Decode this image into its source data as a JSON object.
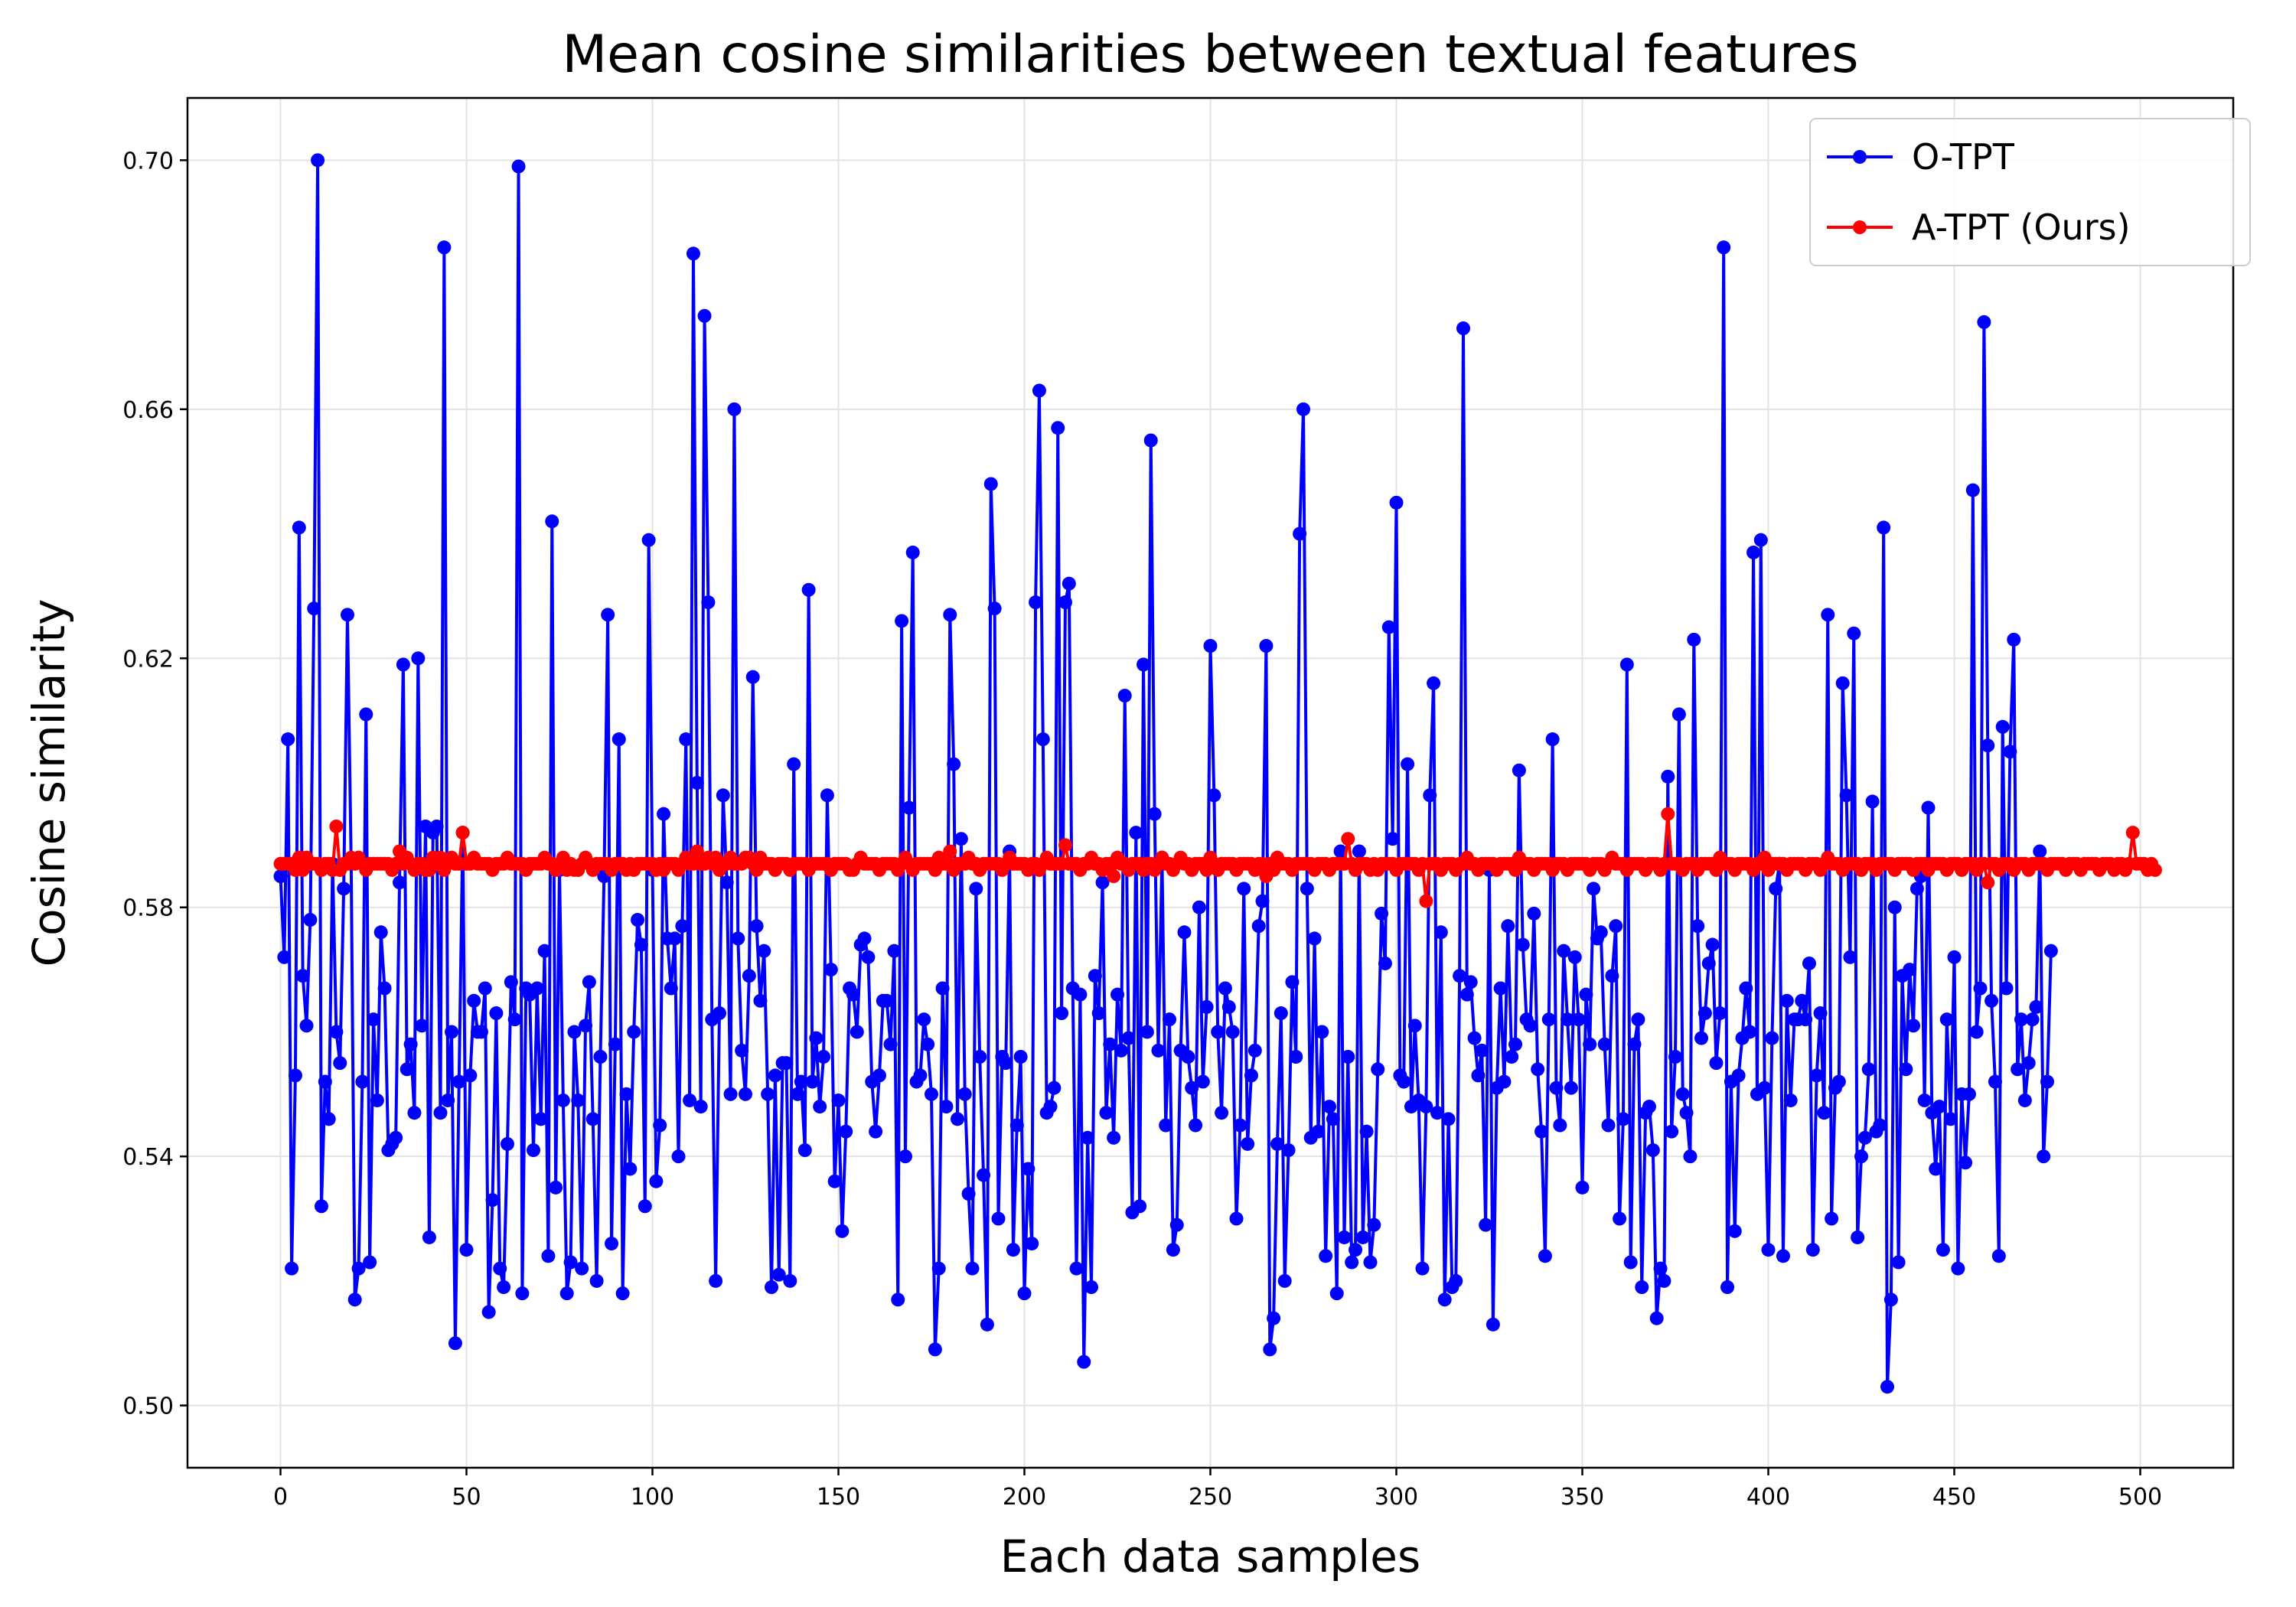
{
  "chart_data": {
    "type": "line",
    "title": "Mean cosine similarities between textual features",
    "xlabel": "Each data samples",
    "ylabel": "Cosine similarity",
    "xlim": [
      -25,
      525
    ],
    "ylim": [
      0.49,
      0.71
    ],
    "xticks": [
      0,
      50,
      100,
      150,
      200,
      250,
      300,
      350,
      400,
      450,
      500
    ],
    "yticks": [
      0.5,
      0.54,
      0.58,
      0.62,
      0.66,
      0.7
    ],
    "xtick_labels": [
      "0",
      "50",
      "100",
      "150",
      "200",
      "250",
      "300",
      "350",
      "400",
      "450",
      "500"
    ],
    "ytick_labels": [
      "0.50",
      "0.54",
      "0.58",
      "0.62",
      "0.66",
      "0.70"
    ],
    "grid": true,
    "legend_position": "top-right",
    "series": [
      {
        "name": "O-TPT",
        "color": "#0000ff",
        "marker": "circle",
        "values": [
          0.585,
          0.572,
          0.607,
          0.522,
          0.553,
          0.641,
          0.569,
          0.561,
          0.578,
          0.628,
          0.7,
          0.532,
          0.552,
          0.546,
          0.587,
          0.56,
          0.555,
          0.583,
          0.627,
          0.587,
          0.517,
          0.522,
          0.552,
          0.611,
          0.523,
          0.562,
          0.549,
          0.576,
          0.567,
          0.541,
          0.542,
          0.543,
          0.584,
          0.619,
          0.554,
          0.558,
          0.547,
          0.62,
          0.561,
          0.593,
          0.527,
          0.592,
          0.593,
          0.547,
          0.686,
          0.549,
          0.56,
          0.51,
          0.552,
          0.592,
          0.525,
          0.553,
          0.565,
          0.56,
          0.56,
          0.567,
          0.515,
          0.533,
          0.563,
          0.522,
          0.519,
          0.542,
          0.568,
          0.562,
          0.699,
          0.518,
          0.567,
          0.566,
          0.541,
          0.567,
          0.546,
          0.573,
          0.524,
          0.642,
          0.535,
          0.586,
          0.549,
          0.518,
          0.523,
          0.56,
          0.549,
          0.522,
          0.561,
          0.568,
          0.546,
          0.52,
          0.556,
          0.585,
          0.627,
          0.526,
          0.558,
          0.607,
          0.518,
          0.55,
          0.538,
          0.56,
          0.578,
          0.574,
          0.532,
          0.639,
          0.586,
          0.536,
          0.545,
          0.595,
          0.575,
          0.567,
          0.575,
          0.54,
          0.577,
          0.607,
          0.549,
          0.685,
          0.6,
          0.548,
          0.675,
          0.629,
          0.562,
          0.52,
          0.563,
          0.598,
          0.584,
          0.55,
          0.66,
          0.575,
          0.557,
          0.55,
          0.569,
          0.617,
          0.577,
          0.565,
          0.573,
          0.55,
          0.519,
          0.553,
          0.521,
          0.555,
          0.555,
          0.52,
          0.603,
          0.55,
          0.552,
          0.541,
          0.631,
          0.552,
          0.559,
          0.548,
          0.556,
          0.598,
          0.57,
          0.536,
          0.549,
          0.528,
          0.544,
          0.567,
          0.566,
          0.56,
          0.574,
          0.575,
          0.572,
          0.552,
          0.544,
          0.553,
          0.565,
          0.565,
          0.558,
          0.573,
          0.517,
          0.626,
          0.54,
          0.596,
          0.637,
          0.552,
          0.553,
          0.562,
          0.558,
          0.55,
          0.509,
          0.522,
          0.567,
          0.548,
          0.627,
          0.603,
          0.546,
          0.591,
          0.55,
          0.534,
          0.522,
          0.583,
          0.556,
          0.537,
          0.513,
          0.648,
          0.628,
          0.53,
          0.556,
          0.555,
          0.589,
          0.525,
          0.545,
          0.556,
          0.518,
          0.538,
          0.526,
          0.629,
          0.663,
          0.607,
          0.547,
          0.548,
          0.551,
          0.657,
          0.563,
          0.629,
          0.632,
          0.567,
          0.522,
          0.566,
          0.507,
          0.543,
          0.519,
          0.569,
          0.563,
          0.584,
          0.547,
          0.558,
          0.543,
          0.566,
          0.557,
          0.614,
          0.559,
          0.531,
          0.592,
          0.532,
          0.619,
          0.56,
          0.655,
          0.595,
          0.557,
          0.588,
          0.545,
          0.562,
          0.525,
          0.529,
          0.557,
          0.576,
          0.556,
          0.551,
          0.545,
          0.58,
          0.552,
          0.564,
          0.622,
          0.598,
          0.56,
          0.547,
          0.567,
          0.564,
          0.56,
          0.53,
          0.545,
          0.583,
          0.542,
          0.553,
          0.557,
          0.577,
          0.581,
          0.622,
          0.509,
          0.514,
          0.542,
          0.563,
          0.52,
          0.541,
          0.568,
          0.556,
          0.64,
          0.66,
          0.583,
          0.543,
          0.575,
          0.544,
          0.56,
          0.524,
          0.548,
          0.546,
          0.518,
          0.589,
          0.527,
          0.556,
          0.523,
          0.525,
          0.589,
          0.527,
          0.544,
          0.523,
          0.529,
          0.554,
          0.579,
          0.571,
          0.625,
          0.591,
          0.645,
          0.553,
          0.552,
          0.603,
          0.548,
          0.561,
          0.549,
          0.522,
          0.548,
          0.598,
          0.616,
          0.547,
          0.576,
          0.517,
          0.546,
          0.519,
          0.52,
          0.569,
          0.673,
          0.566,
          0.568,
          0.559,
          0.553,
          0.557,
          0.529,
          0.586,
          0.513,
          0.551,
          0.567,
          0.552,
          0.577,
          0.556,
          0.558,
          0.602,
          0.574,
          0.562,
          0.561,
          0.579,
          0.554,
          0.544,
          0.524,
          0.562,
          0.607,
          0.551,
          0.545,
          0.573,
          0.562,
          0.551,
          0.572,
          0.562,
          0.535,
          0.566,
          0.558,
          0.583,
          0.575,
          0.576,
          0.558,
          0.545,
          0.569,
          0.577,
          0.53,
          0.546,
          0.619,
          0.523,
          0.558,
          0.562,
          0.519,
          0.547,
          0.548,
          0.541,
          0.514,
          0.522,
          0.52,
          0.601,
          0.544,
          0.556,
          0.611,
          0.55,
          0.547,
          0.54,
          0.623,
          0.577,
          0.559,
          0.563,
          0.571,
          0.574,
          0.555,
          0.563,
          0.686,
          0.519,
          0.552,
          0.528,
          0.553,
          0.559,
          0.567,
          0.56,
          0.637,
          0.55,
          0.639,
          0.551,
          0.525,
          0.559,
          0.583,
          0.587,
          0.524,
          0.565,
          0.549,
          0.562,
          0.562,
          0.565,
          0.562,
          0.571,
          0.525,
          0.553,
          0.563,
          0.547,
          0.627,
          0.53,
          0.551,
          0.552,
          0.616,
          0.598,
          0.572,
          0.624,
          0.527,
          0.54,
          0.543,
          0.554,
          0.597,
          0.544,
          0.545,
          0.641,
          0.503,
          0.517,
          0.58,
          0.523,
          0.569,
          0.554,
          0.57,
          0.561,
          0.583,
          0.585,
          0.549,
          0.596,
          0.547,
          0.538,
          0.548,
          0.525,
          0.562,
          0.546,
          0.572,
          0.522,
          0.55,
          0.539,
          0.55,
          0.647,
          0.56,
          0.567,
          0.674,
          0.606,
          0.565,
          0.552,
          0.524,
          0.609,
          0.567,
          0.605,
          0.623,
          0.554,
          0.562,
          0.549,
          0.555,
          0.562,
          0.564,
          0.589,
          0.54,
          0.552,
          0.573
        ]
      },
      {
        "name": "A-TPT (Ours)",
        "color": "#ff0000",
        "marker": "circle",
        "values": [
          0.587,
          0.587,
          0.587,
          0.587,
          0.586,
          0.588,
          0.586,
          0.588,
          0.587,
          0.587,
          0.587,
          0.586,
          0.587,
          0.587,
          0.586,
          0.593,
          0.586,
          0.587,
          0.587,
          0.588,
          0.587,
          0.588,
          0.587,
          0.586,
          0.587,
          0.587,
          0.587,
          0.587,
          0.587,
          0.587,
          0.586,
          0.587,
          0.589,
          0.587,
          0.588,
          0.587,
          0.586,
          0.587,
          0.587,
          0.586,
          0.586,
          0.588,
          0.587,
          0.588,
          0.586,
          0.587,
          0.588,
          0.587,
          0.587,
          0.592,
          0.587,
          0.587,
          0.588,
          0.587,
          0.587,
          0.587,
          0.587,
          0.586,
          0.587,
          0.587,
          0.587,
          0.588,
          0.587,
          0.587,
          0.587,
          0.587,
          0.586,
          0.587,
          0.587,
          0.587,
          0.587,
          0.588,
          0.587,
          0.587,
          0.586,
          0.587,
          0.588,
          0.586,
          0.587,
          0.586,
          0.586,
          0.587,
          0.588,
          0.587,
          0.586,
          0.587,
          0.587,
          0.587,
          0.587,
          0.586,
          0.587,
          0.587,
          0.587,
          0.586,
          0.587,
          0.586,
          0.587,
          0.587,
          0.587,
          0.587,
          0.587,
          0.586,
          0.587,
          0.586,
          0.587,
          0.587,
          0.587,
          0.586,
          0.587,
          0.588,
          0.587,
          0.587,
          0.589,
          0.587,
          0.587,
          0.588,
          0.587,
          0.588,
          0.586,
          0.587,
          0.587,
          0.588,
          0.587,
          0.587,
          0.587,
          0.588,
          0.588,
          0.587,
          0.586,
          0.588,
          0.587,
          0.587,
          0.587,
          0.586,
          0.587,
          0.587,
          0.587,
          0.586,
          0.587,
          0.587,
          0.587,
          0.587,
          0.586,
          0.587,
          0.587,
          0.587,
          0.587,
          0.587,
          0.586,
          0.587,
          0.587,
          0.587,
          0.587,
          0.586,
          0.586,
          0.587,
          0.588,
          0.587,
          0.587,
          0.587,
          0.587,
          0.586,
          0.587,
          0.587,
          0.587,
          0.587,
          0.586,
          0.587,
          0.588,
          0.587,
          0.586,
          0.587,
          0.587,
          0.587,
          0.587,
          0.587,
          0.586,
          0.588,
          0.587,
          0.587,
          0.589,
          0.586,
          0.587,
          0.587,
          0.587,
          0.588,
          0.587,
          0.587,
          0.586,
          0.587,
          0.587,
          0.587,
          0.587,
          0.587,
          0.586,
          0.587,
          0.588,
          0.587,
          0.587,
          0.587,
          0.587,
          0.586,
          0.587,
          0.587,
          0.586,
          0.587,
          0.588,
          0.587,
          0.587,
          0.587,
          0.587,
          0.59,
          0.587,
          0.587,
          0.587,
          0.586,
          0.587,
          0.587,
          0.588,
          0.587,
          0.587,
          0.586,
          0.587,
          0.587,
          0.585,
          0.588,
          0.587,
          0.587,
          0.586,
          0.587,
          0.587,
          0.587,
          0.586,
          0.587,
          0.587,
          0.586,
          0.587,
          0.588,
          0.587,
          0.587,
          0.586,
          0.587,
          0.588,
          0.587,
          0.587,
          0.586,
          0.587,
          0.587,
          0.587,
          0.586,
          0.588,
          0.587,
          0.586,
          0.587,
          0.587,
          0.587,
          0.587,
          0.586,
          0.587,
          0.587,
          0.587,
          0.587,
          0.586,
          0.587,
          0.587,
          0.585,
          0.587,
          0.586,
          0.588,
          0.587,
          0.587,
          0.587,
          0.586,
          0.587,
          0.587,
          0.587,
          0.587,
          0.587,
          0.586,
          0.587,
          0.587,
          0.587,
          0.586,
          0.587,
          0.587,
          0.587,
          0.587,
          0.591,
          0.587,
          0.586,
          0.587,
          0.587,
          0.587,
          0.586,
          0.587,
          0.586,
          0.587,
          0.587,
          0.587,
          0.587,
          0.586,
          0.587,
          0.587,
          0.587,
          0.587,
          0.587,
          0.586,
          0.587,
          0.581,
          0.587,
          0.587,
          0.587,
          0.586,
          0.587,
          0.587,
          0.587,
          0.586,
          0.587,
          0.587,
          0.588,
          0.587,
          0.587,
          0.586,
          0.587,
          0.587,
          0.587,
          0.587,
          0.586,
          0.587,
          0.587,
          0.587,
          0.587,
          0.586,
          0.588,
          0.587,
          0.587,
          0.587,
          0.586,
          0.587,
          0.587,
          0.587,
          0.587,
          0.586,
          0.587,
          0.587,
          0.587,
          0.586,
          0.587,
          0.587,
          0.587,
          0.587,
          0.587,
          0.586,
          0.587,
          0.587,
          0.587,
          0.586,
          0.587,
          0.588,
          0.587,
          0.587,
          0.587,
          0.586,
          0.587,
          0.587,
          0.587,
          0.587,
          0.586,
          0.587,
          0.587,
          0.587,
          0.586,
          0.587,
          0.595,
          0.587,
          0.587,
          0.587,
          0.586,
          0.587,
          0.587,
          0.587,
          0.586,
          0.587,
          0.587,
          0.587,
          0.587,
          0.586,
          0.588,
          0.587,
          0.587,
          0.587,
          0.586,
          0.587,
          0.587,
          0.587,
          0.587,
          0.586,
          0.587,
          0.587,
          0.588,
          0.586,
          0.587,
          0.587,
          0.587,
          0.587,
          0.586,
          0.587,
          0.587,
          0.587,
          0.587,
          0.586,
          0.587,
          0.587,
          0.587,
          0.586,
          0.587,
          0.588,
          0.587,
          0.587,
          0.587,
          0.586,
          0.587,
          0.587,
          0.587,
          0.587,
          0.586,
          0.587,
          0.587,
          0.587,
          0.586,
          0.587,
          0.587,
          0.587,
          0.587,
          0.586,
          0.587,
          0.587,
          0.587,
          0.587,
          0.586,
          0.587,
          0.587,
          0.587,
          0.586,
          0.587,
          0.587,
          0.587,
          0.587,
          0.586,
          0.587,
          0.587,
          0.587,
          0.586,
          0.587,
          0.587,
          0.587,
          0.586,
          0.587,
          0.587,
          0.584,
          0.587,
          0.587,
          0.586,
          0.587,
          0.587,
          0.587,
          0.586,
          0.587,
          0.587,
          0.587,
          0.586,
          0.587,
          0.587,
          0.587,
          0.587,
          0.586,
          0.587,
          0.587,
          0.587,
          0.587,
          0.586,
          0.587,
          0.587,
          0.587,
          0.586,
          0.587,
          0.587,
          0.587,
          0.587,
          0.586,
          0.587,
          0.587,
          0.587,
          0.586,
          0.587,
          0.587,
          0.586,
          0.587,
          0.592,
          0.587,
          0.587,
          0.587,
          0.586,
          0.587,
          0.586
        ]
      }
    ]
  }
}
